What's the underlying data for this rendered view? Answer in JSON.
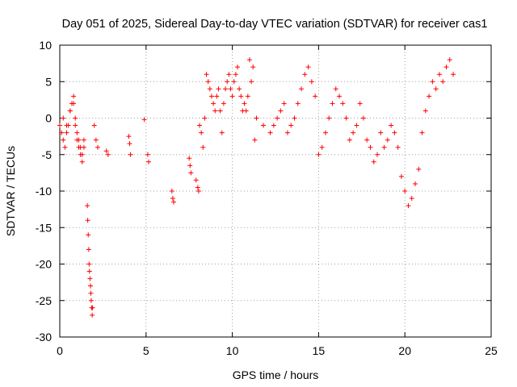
{
  "chart_data": {
    "type": "scatter",
    "title": "Day 051 of 2025, Sidereal Day-to-day VTEC variation (SDTVAR) for receiver cas1",
    "xlabel": "GPS time / hours",
    "ylabel": "SDTVAR / TECUs",
    "xlim": [
      0,
      25
    ],
    "ylim": [
      -30,
      10
    ],
    "grid": true,
    "marker": "+",
    "color": "#ff0000",
    "x_ticks": [
      0,
      5,
      10,
      15,
      20,
      25
    ],
    "y_ticks": [
      10,
      5,
      0,
      -5,
      -10,
      -15,
      -20,
      -25,
      -30
    ],
    "series": [
      {
        "name": "SDTVAR",
        "x": [
          0.0,
          0.1,
          0.2,
          0.3,
          0.4,
          0.5,
          0.6,
          0.7,
          0.8,
          0.9,
          1.0,
          1.1,
          1.2,
          1.3,
          1.4,
          0.2,
          0.4,
          0.6,
          0.8,
          0.9,
          1.0,
          1.1,
          1.2,
          1.3,
          1.4,
          1.6,
          1.62,
          1.65,
          1.68,
          1.7,
          1.72,
          1.75,
          1.78,
          1.8,
          1.82,
          1.85,
          1.88,
          1.9,
          2.0,
          2.1,
          2.2,
          2.7,
          2.8,
          4.0,
          4.05,
          4.1,
          4.9,
          5.1,
          5.15,
          6.5,
          6.55,
          6.6,
          7.5,
          7.55,
          7.6,
          7.9,
          8.0,
          8.05,
          8.1,
          8.2,
          8.3,
          8.4,
          8.5,
          8.6,
          8.7,
          8.8,
          8.9,
          9.0,
          9.1,
          9.2,
          9.3,
          9.4,
          9.5,
          9.6,
          9.7,
          9.8,
          9.9,
          10.0,
          10.1,
          10.2,
          10.3,
          10.4,
          10.5,
          10.6,
          10.7,
          10.8,
          10.9,
          11.0,
          11.1,
          11.2,
          11.3,
          11.4,
          11.8,
          12.2,
          12.4,
          12.6,
          12.8,
          13.0,
          13.2,
          13.4,
          13.6,
          13.8,
          14.0,
          14.2,
          14.4,
          14.6,
          14.8,
          15.0,
          15.2,
          15.4,
          15.6,
          15.8,
          16.0,
          16.2,
          16.4,
          16.6,
          16.8,
          17.0,
          17.2,
          17.4,
          17.6,
          17.8,
          18.0,
          18.2,
          18.4,
          18.6,
          18.8,
          19.0,
          19.2,
          19.4,
          19.6,
          19.8,
          20.0,
          20.2,
          20.4,
          20.6,
          20.8,
          21.0,
          21.2,
          21.4,
          21.6,
          21.8,
          22.0,
          22.2,
          22.4,
          22.6,
          22.8
        ],
        "values": [
          -1,
          -2,
          -3,
          -4,
          -2,
          -1,
          1,
          2,
          3,
          -1,
          -3,
          -4,
          -5,
          -6,
          -4,
          0,
          -1,
          1,
          2,
          0,
          -2,
          -3,
          -4,
          -5,
          -3,
          -12,
          -14,
          -16,
          -18,
          -20,
          -21,
          -22,
          -23,
          -24,
          -25,
          -26,
          -27,
          -26,
          -1,
          -3,
          -4,
          -4.5,
          -5,
          -2.5,
          -3.5,
          -5,
          -0.2,
          -5,
          -6,
          -10,
          -11,
          -11.5,
          -5.5,
          -6.5,
          -7.5,
          -8.5,
          -9.5,
          -10,
          -1,
          -2,
          -4,
          0,
          6,
          5,
          4,
          3,
          2,
          1,
          3,
          4,
          1,
          -2,
          2,
          4,
          5,
          6,
          4,
          3,
          5,
          6,
          7,
          4,
          3,
          1,
          2,
          1,
          3,
          8,
          5,
          7,
          -3,
          0,
          -1,
          -2,
          -1,
          0,
          1,
          2,
          -2,
          -1,
          0,
          2,
          4,
          6,
          7,
          5,
          3,
          -5,
          -4,
          -2,
          0,
          2,
          4,
          3,
          2,
          0,
          -3,
          -2,
          -1,
          2,
          0,
          -3,
          -4,
          -6,
          -5,
          -2,
          -4,
          -3,
          -1,
          -2,
          -4,
          -8,
          -10,
          -12,
          -11,
          -9,
          -7,
          -2,
          1,
          3,
          5,
          4,
          6,
          5,
          7,
          8,
          6
        ]
      }
    ]
  }
}
